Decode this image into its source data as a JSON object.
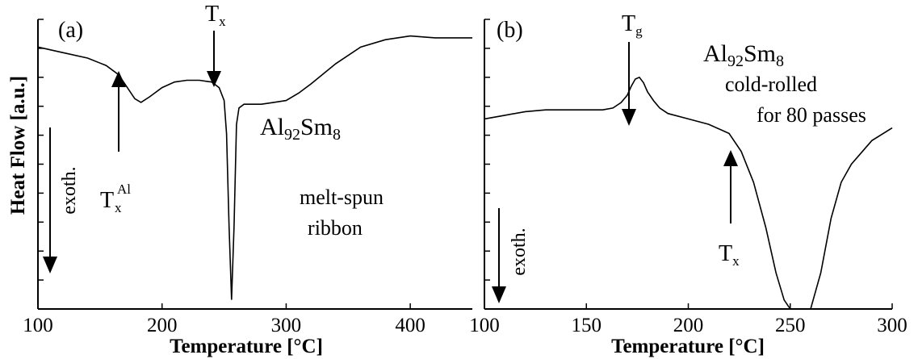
{
  "chart_data": [
    {
      "panel": "(a)",
      "type": "line",
      "xlabel": "Temperature [°C]",
      "ylabel": "Heat Flow [a.u.]",
      "xlim": [
        100,
        450
      ],
      "xticks": [
        100,
        200,
        300,
        400
      ],
      "y_units": "arbitrary (endothermic up, exothermic down)",
      "ylim": [
        -1.05,
        0.52
      ],
      "y_minor_ticks": 10,
      "series": [
        {
          "x": [
            100,
            120,
            140,
            155,
            165,
            172,
            178,
            183,
            190,
            200,
            210,
            220,
            230,
            240,
            246,
            250,
            252,
            254,
            256,
            258,
            260,
            262,
            266,
            270,
            280,
            290,
            300,
            310,
            320,
            340,
            360,
            380,
            400,
            420,
            450
          ],
          "y": [
            0.37,
            0.34,
            0.31,
            0.27,
            0.22,
            0.15,
            0.09,
            0.07,
            0.1,
            0.15,
            0.18,
            0.19,
            0.19,
            0.18,
            0.15,
            0.08,
            -0.1,
            -0.6,
            -1.0,
            -0.6,
            -0.05,
            0.04,
            0.06,
            0.06,
            0.06,
            0.07,
            0.08,
            0.12,
            0.17,
            0.28,
            0.37,
            0.41,
            0.43,
            0.42,
            0.42
          ]
        }
      ],
      "annotations": {
        "tx": {
          "main": "T",
          "sub": "x",
          "x": 242,
          "arrow": "down"
        },
        "txal": {
          "main": "T",
          "sub": "x",
          "sup": "Al",
          "x": 160,
          "arrow": "up"
        },
        "formula": {
          "a": "Al",
          "a_sub": "92",
          "b": "Sm",
          "b_sub": "8"
        },
        "note": [
          "melt-spun",
          "ribbon"
        ],
        "exoth": "exoth."
      }
    },
    {
      "panel": "(b)",
      "type": "line",
      "xlabel": "Temperature [°C]",
      "ylabel": "",
      "xlim": [
        100,
        300
      ],
      "xticks": [
        100,
        150,
        200,
        250,
        300
      ],
      "y_units": "arbitrary (endothermic up, exothermic down)",
      "ylim": [
        -1.05,
        0.55
      ],
      "y_minor_ticks": 10,
      "series": [
        {
          "x": [
            100,
            110,
            120,
            130,
            140,
            150,
            158,
            163,
            167,
            170,
            172,
            174,
            176,
            178,
            180,
            183,
            186,
            190,
            200,
            210,
            220,
            226,
            232,
            238,
            243,
            247,
            250,
            255,
            260,
            265,
            270,
            275,
            280,
            290,
            300
          ],
          "y": [
            0.0,
            0.02,
            0.04,
            0.05,
            0.05,
            0.05,
            0.05,
            0.06,
            0.09,
            0.13,
            0.18,
            0.22,
            0.23,
            0.2,
            0.15,
            0.1,
            0.06,
            0.03,
            0.0,
            -0.03,
            -0.08,
            -0.18,
            -0.35,
            -0.6,
            -0.85,
            -1.0,
            -1.05,
            -1.05,
            -1.05,
            -0.85,
            -0.55,
            -0.35,
            -0.25,
            -0.12,
            -0.05
          ]
        }
      ],
      "annotations": {
        "tg": {
          "main": "T",
          "sub": "g",
          "x": 170,
          "arrow": "down"
        },
        "tx": {
          "main": "T",
          "sub": "x",
          "x": 220,
          "arrow": "up"
        },
        "formula": {
          "a": "Al",
          "a_sub": "92",
          "b": "Sm",
          "b_sub": "8"
        },
        "note": [
          "cold-rolled",
          "for 80 passes"
        ],
        "exoth": "exoth."
      }
    }
  ]
}
